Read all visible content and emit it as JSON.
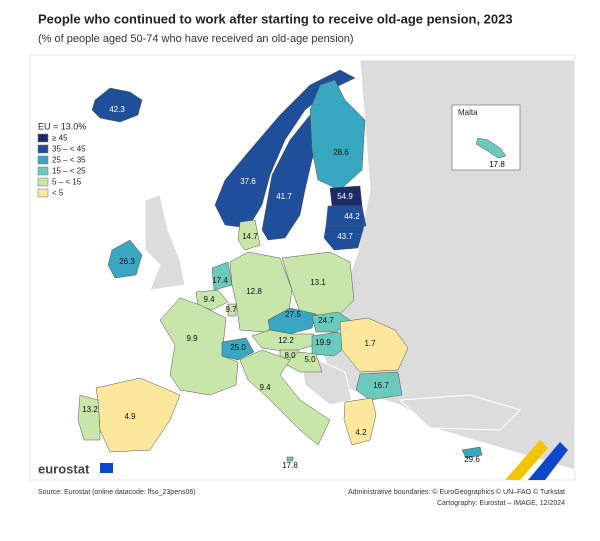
{
  "title": "People who continued to work after starting to receive old-age pension, 2023",
  "subtitle": "(% of people aged 50-74 who have received an old-age pension)",
  "legend": {
    "title": "EU = 13.0%",
    "items": [
      {
        "label": "≥ 45",
        "color": "#1c2a66"
      },
      {
        "label": "35 – < 45",
        "color": "#1f4f9b"
      },
      {
        "label": "25 – < 35",
        "color": "#3aa7c1"
      },
      {
        "label": "15 – < 25",
        "color": "#6ccabd"
      },
      {
        "label": "5 – < 15",
        "color": "#c9e6aa"
      },
      {
        "label": "< 5",
        "color": "#fde79c"
      }
    ]
  },
  "inset_title": "Malta",
  "regions": [
    {
      "value": 42.3,
      "color": "#1f4f9b"
    },
    {
      "value": 37.6,
      "color": "#1f4f9b"
    },
    {
      "value": 41.7,
      "color": "#1f4f9b"
    },
    {
      "value": 28.6,
      "color": "#3aa7c1"
    },
    {
      "value": 54.9,
      "color": "#1c2a66"
    },
    {
      "value": 44.2,
      "color": "#1f4f9b"
    },
    {
      "value": 43.7,
      "color": "#1f4f9b"
    },
    {
      "value": 26.3,
      "color": "#3aa7c1"
    },
    {
      "value": 14.7,
      "color": "#c9e6aa"
    },
    {
      "value": 17.4,
      "color": "#6ccabd"
    },
    {
      "value": 9.4,
      "color": "#c9e6aa"
    },
    {
      "value": 9.7,
      "color": "#c9e6aa"
    },
    {
      "value": 12.8,
      "color": "#c9e6aa"
    },
    {
      "value": 13.1,
      "color": "#c9e6aa"
    },
    {
      "value": 9.9,
      "color": "#c9e6aa"
    },
    {
      "value": 27.5,
      "color": "#3aa7c1"
    },
    {
      "value": 24.7,
      "color": "#6ccabd"
    },
    {
      "value": 12.2,
      "color": "#c9e6aa"
    },
    {
      "value": 25,
      "label": "25.0",
      "color": "#3aa7c1"
    },
    {
      "value": 19.9,
      "color": "#6ccabd"
    },
    {
      "value": 8,
      "label": "8.0",
      "color": "#c9e6aa"
    },
    {
      "value": 5,
      "label": "5.0",
      "color": "#c9e6aa"
    },
    {
      "value": 1.7,
      "color": "#fde79c"
    },
    {
      "value": 16.7,
      "color": "#6ccabd"
    },
    {
      "value": 9.4,
      "color": "#c9e6aa"
    },
    {
      "value": 4.9,
      "color": "#fde79c"
    },
    {
      "value": 13.2,
      "color": "#c9e6aa"
    },
    {
      "value": 4.2,
      "color": "#fde79c"
    },
    {
      "value": 17.8,
      "color": "#6ccabd"
    },
    {
      "value": 29.6,
      "color": "#3aa7c1"
    }
  ],
  "logo": "eurostat",
  "source": "Source: Eurostat (online datacode: lfso_23pens06)",
  "boundaries": "Administrative boundaries: © EuroGeographics © UN–FAO © Turkstat",
  "cartography": "Cartography: Eurostat – IMAGE, 12/2024"
}
